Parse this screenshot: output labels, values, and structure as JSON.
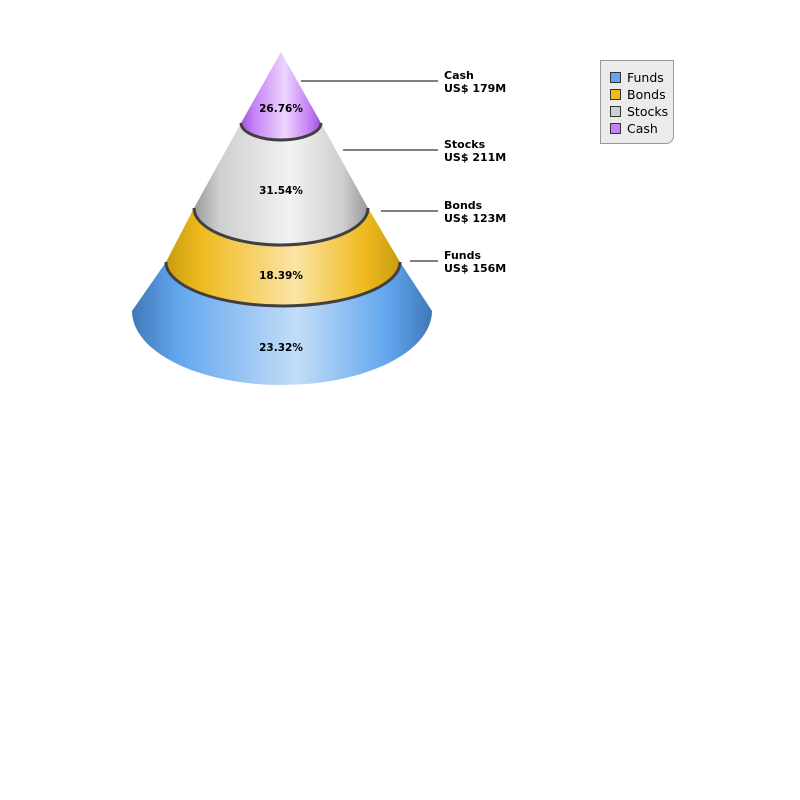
{
  "chart_data": {
    "type": "pie",
    "variant": "3d-cone-funnel",
    "order_bottom_to_top": [
      "Funds",
      "Bonds",
      "Stocks",
      "Cash"
    ],
    "slices": [
      {
        "name": "Funds",
        "value": 156,
        "value_label": "US$ 156M",
        "percent_label": "23.32%",
        "color": "#62a6ee"
      },
      {
        "name": "Bonds",
        "value": 123,
        "value_label": "US$ 123M",
        "percent_label": "18.39%",
        "color": "#efba1e"
      },
      {
        "name": "Stocks",
        "value": 211,
        "value_label": "US$ 211M",
        "percent_label": "31.54%",
        "color": "#cfcfcf"
      },
      {
        "name": "Cash",
        "value": 179,
        "value_label": "US$ 179M",
        "percent_label": "26.76%",
        "color": "#c580f5"
      }
    ],
    "legend": {
      "position": "top-right",
      "items": [
        {
          "label": "Funds",
          "color": "#62a6ee"
        },
        {
          "label": "Bonds",
          "color": "#efba1e"
        },
        {
          "label": "Stocks",
          "color": "#cfcfcf"
        },
        {
          "label": "Cash",
          "color": "#c580f5"
        }
      ]
    }
  }
}
